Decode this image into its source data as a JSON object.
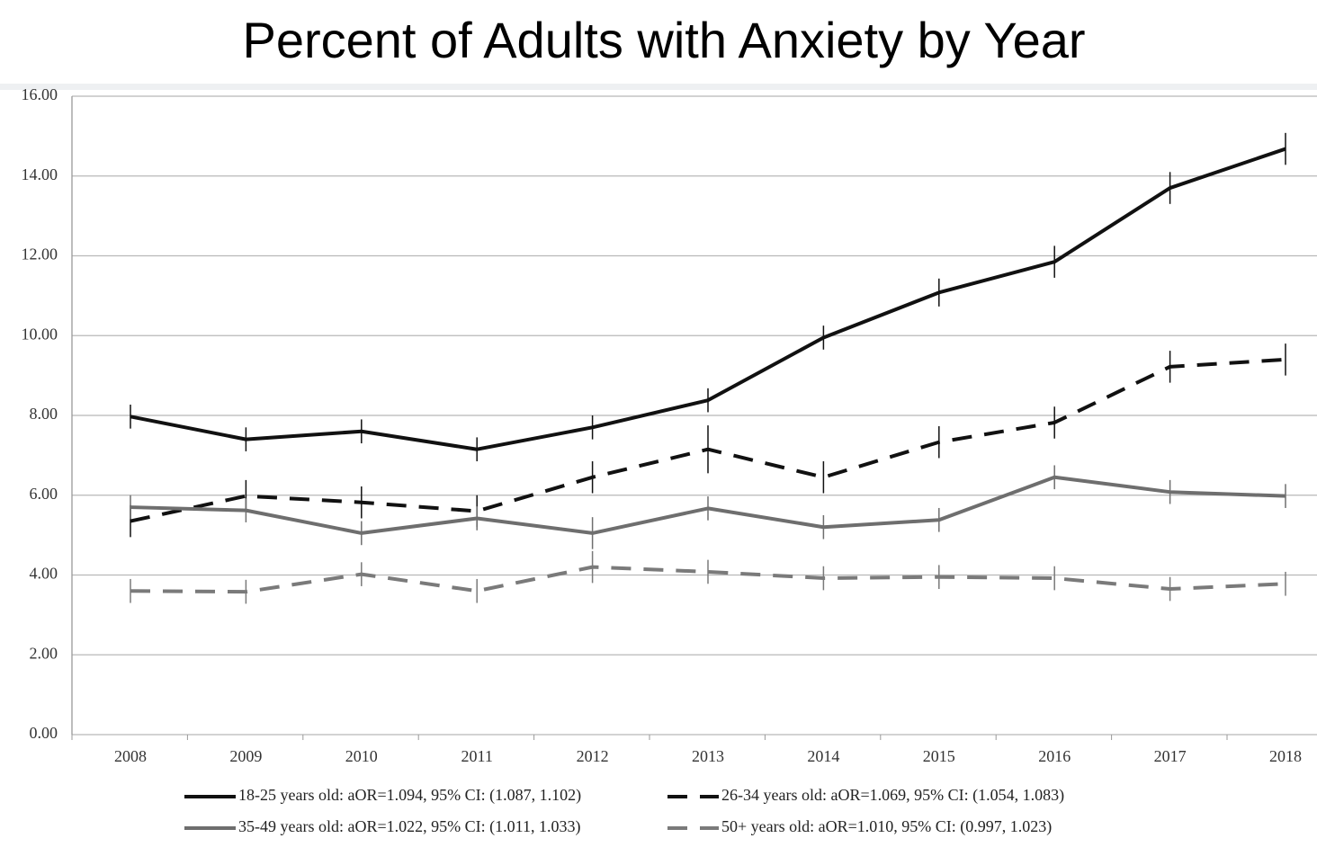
{
  "chart_data": {
    "type": "line",
    "title": "Percent of Adults with Anxiety by Year",
    "categories": [
      "2008",
      "2009",
      "2010",
      "2011",
      "2012",
      "2013",
      "2014",
      "2015",
      "2016",
      "2017",
      "2018"
    ],
    "ylim": [
      0,
      16
    ],
    "yticks": [
      {
        "value": 0,
        "label": "0.00"
      },
      {
        "value": 2,
        "label": "2.00"
      },
      {
        "value": 4,
        "label": "4.00"
      },
      {
        "value": 6,
        "label": "6.00"
      },
      {
        "value": 8,
        "label": "8.00"
      },
      {
        "value": 10,
        "label": "10.00"
      },
      {
        "value": 12,
        "label": "12.00"
      },
      {
        "value": 14,
        "label": "14.00"
      },
      {
        "value": 16,
        "label": "16.00"
      }
    ],
    "grid": true,
    "legend": "bottom",
    "series": [
      {
        "name": "18-25 years old: aOR=1.094, 95% CI: (1.087, 1.102)",
        "color": "#111111",
        "dashed": false,
        "values": [
          7.97,
          7.4,
          7.6,
          7.15,
          7.7,
          8.38,
          9.95,
          11.08,
          11.85,
          13.7,
          14.68
        ],
        "errors": [
          0.3,
          0.3,
          0.3,
          0.3,
          0.3,
          0.3,
          0.3,
          0.35,
          0.4,
          0.4,
          0.4
        ]
      },
      {
        "name": "26-34 years old: aOR=1.069, 95% CI: (1.054, 1.083)",
        "color": "#111111",
        "dashed": true,
        "values": [
          5.35,
          5.98,
          5.82,
          5.6,
          6.45,
          7.15,
          6.45,
          7.33,
          7.82,
          9.22,
          9.4
        ],
        "errors": [
          0.4,
          0.4,
          0.4,
          0.4,
          0.4,
          0.6,
          0.4,
          0.4,
          0.4,
          0.4,
          0.4
        ]
      },
      {
        "name": "35-49 years old: aOR=1.022, 95% CI: (1.011, 1.033)",
        "color": "#6e6e6e",
        "dashed": false,
        "values": [
          5.7,
          5.62,
          5.05,
          5.42,
          5.05,
          5.67,
          5.2,
          5.38,
          6.45,
          6.08,
          5.98
        ],
        "errors": [
          0.3,
          0.3,
          0.3,
          0.3,
          0.4,
          0.3,
          0.3,
          0.3,
          0.3,
          0.3,
          0.3
        ]
      },
      {
        "name": "50+ years old: aOR=1.010, 95% CI: (0.997, 1.023)",
        "color": "#7a7a7a",
        "dashed": true,
        "values": [
          3.6,
          3.58,
          4.02,
          3.6,
          4.2,
          4.08,
          3.92,
          3.95,
          3.92,
          3.65,
          3.78
        ],
        "errors": [
          0.3,
          0.3,
          0.3,
          0.3,
          0.4,
          0.3,
          0.3,
          0.3,
          0.3,
          0.3,
          0.3
        ]
      }
    ]
  }
}
